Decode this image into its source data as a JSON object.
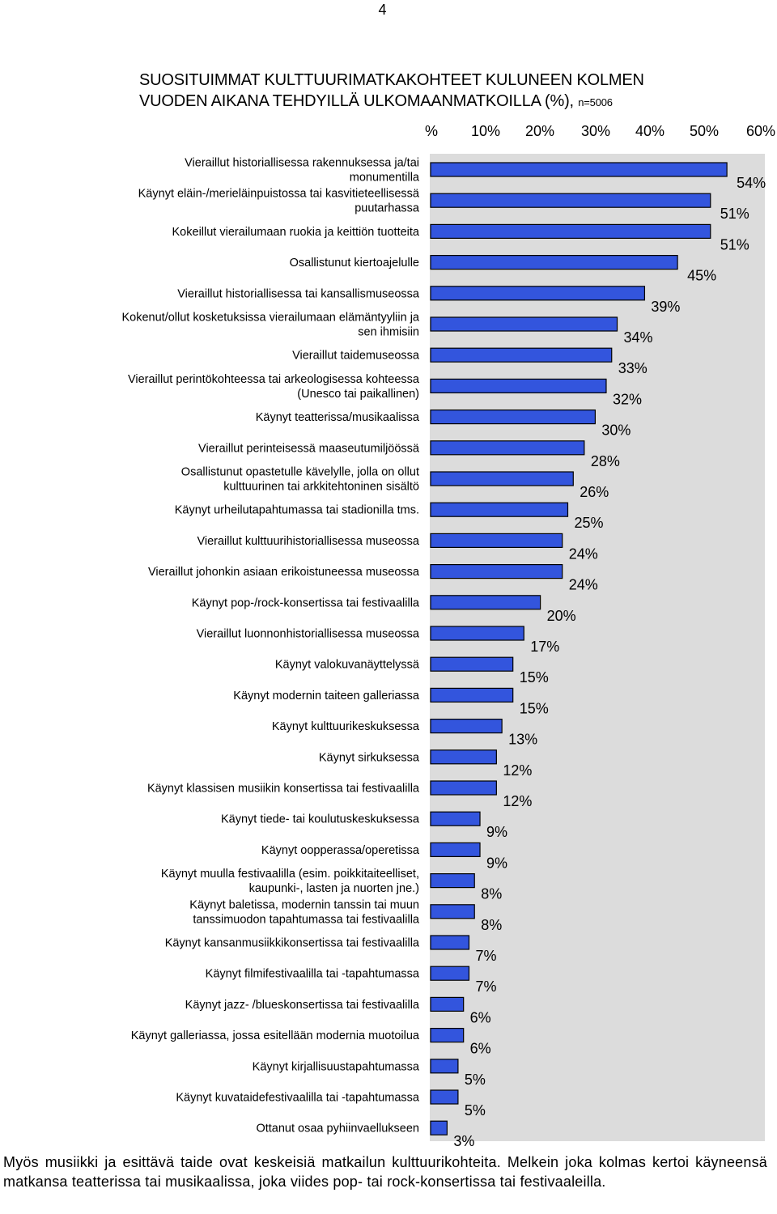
{
  "page_number": "4",
  "title": {
    "line1": "SUOSITUIMMAT KULTTUURIMATKAKOHTEET KULUNEEN KOLMEN",
    "line2": "VUODEN AIKANA TEHDYILLÄ ULKOMAANMATKOILLA (%),",
    "sample": "n=5006"
  },
  "caption": "Myös musiikki ja esittävä taide ovat keskeisiä matkailun kulttuurikohteita. Melkein joka kolmas kertoi käyneensä matkansa teatterissa tai musikaalissa, joka viides pop- tai rock-konsertissa tai festivaaleilla.",
  "colors": {
    "bar_fill": "#3355dd",
    "bar_stroke": "#000000",
    "plot_bg": "#dcdcdc"
  },
  "chart_data": {
    "type": "bar",
    "orientation": "horizontal",
    "x_tick_labels": [
      "%",
      "10%",
      "20%",
      "30%",
      "40%",
      "50%",
      "60%"
    ],
    "xlim": [
      0,
      60
    ],
    "value_suffix": "%",
    "categories": [
      [
        "Vieraillut historiallisessa rakennuksessa ja/tai",
        "monumentilla"
      ],
      [
        "Käynyt eläin-/merieläinpuistossa tai kasvitieteellisessä",
        "puutarhassa"
      ],
      [
        "Kokeillut vierailumaan ruokia ja keittiön tuotteita"
      ],
      [
        "Osallistunut kiertoajelulle"
      ],
      [
        "Vieraillut historiallisessa tai kansallismuseossa"
      ],
      [
        "Kokenut/ollut kosketuksissa vierailumaan elämäntyyliin ja",
        "sen ihmisiin"
      ],
      [
        "Vieraillut taidemuseossa"
      ],
      [
        "Vieraillut perintökohteessa tai arkeologisessa kohteessa",
        "(Unesco tai paikallinen)"
      ],
      [
        "Käynyt teatterissa/musikaalissa"
      ],
      [
        "Vieraillut perinteisessä maaseutumiljöössä"
      ],
      [
        "Osallistunut opastetulle kävelylle, jolla on ollut",
        "kulttuurinen tai arkkitehtoninen sisältö"
      ],
      [
        "Käynyt urheilutapahtumassa tai stadionilla tms."
      ],
      [
        "Vieraillut kulttuurihistoriallisessa museossa"
      ],
      [
        "Vieraillut johonkin asiaan erikoistuneessa museossa"
      ],
      [
        "Käynyt pop-/rock-konsertissa tai festivaalilla"
      ],
      [
        "Vieraillut luonnonhistoriallisessa museossa"
      ],
      [
        "Käynyt valokuvanäyttelyssä"
      ],
      [
        "Käynyt modernin taiteen galleriassa"
      ],
      [
        "Käynyt kulttuurikeskuksessa"
      ],
      [
        "Käynyt sirkuksessa"
      ],
      [
        "Käynyt klassisen musiikin konsertissa tai festivaalilla"
      ],
      [
        "Käynyt tiede- tai koulutuskeskuksessa"
      ],
      [
        "Käynyt oopperassa/operetissa"
      ],
      [
        "Käynyt muulla festivaalilla (esim. poikkitaiteelliset,",
        "kaupunki-, lasten ja nuorten jne.)"
      ],
      [
        "Käynyt baletissa, modernin tanssin tai muun",
        "tanssimuodon tapahtumassa tai festivaalilla"
      ],
      [
        "Käynyt kansanmusiikkikonsertissa tai festivaalilla"
      ],
      [
        "Käynyt filmifestivaalilla tai -tapahtumassa"
      ],
      [
        "Käynyt jazz- /blueskonsertissa tai festivaalilla"
      ],
      [
        "Käynyt galleriassa, jossa esitellään modernia muotoilua"
      ],
      [
        "Käynyt kirjallisuustapahtumassa"
      ],
      [
        "Käynyt kuvataidefestivaalilla tai -tapahtumassa"
      ],
      [
        "Ottanut osaa pyhiinvaellukseen"
      ]
    ],
    "values": [
      54,
      51,
      51,
      45,
      39,
      34,
      33,
      32,
      30,
      28,
      26,
      25,
      24,
      24,
      20,
      17,
      15,
      15,
      13,
      12,
      12,
      9,
      9,
      8,
      8,
      7,
      7,
      6,
      6,
      5,
      5,
      3
    ]
  }
}
